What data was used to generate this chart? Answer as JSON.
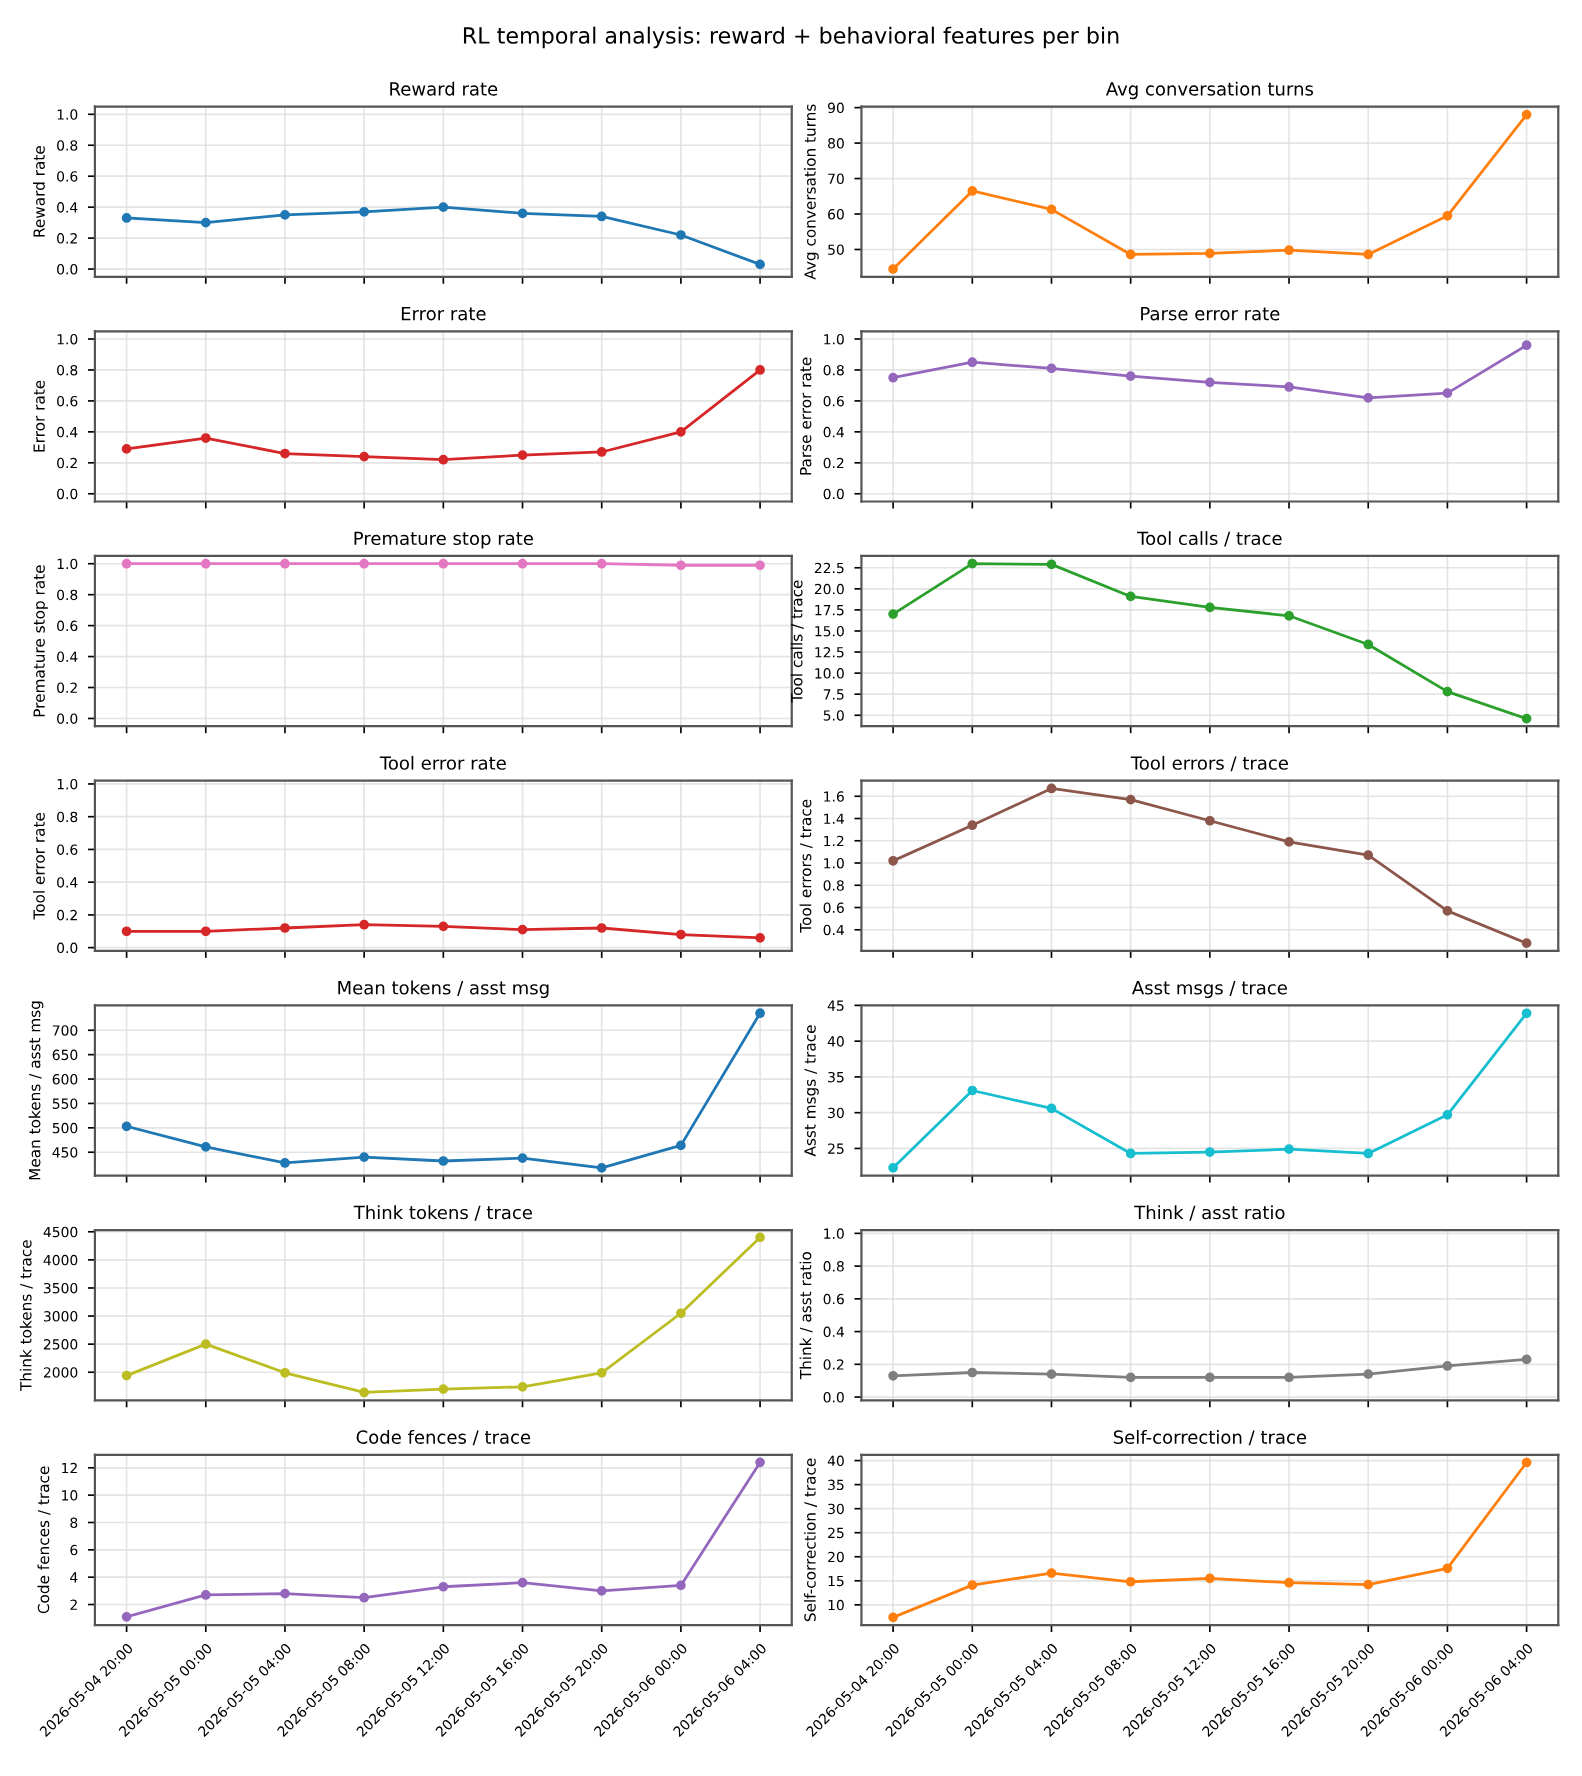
{
  "chart_data": [
    {
      "type": "line",
      "title": "Reward rate",
      "ylabel": "Reward rate",
      "annotations": [
        "RL temporal analysis: reward + behavioral features per bin"
      ],
      "categories": [
        "2026-05-04 20:00",
        "2026-05-05 00:00",
        "2026-05-05 04:00",
        "2026-05-05 08:00",
        "2026-05-05 12:00",
        "2026-05-05 16:00",
        "2026-05-05 20:00",
        "2026-05-06 00:00",
        "2026-05-06 04:00"
      ],
      "series": [
        {
          "color": "#1f77b4",
          "values": [
            0.33,
            0.3,
            0.35,
            0.37,
            0.4,
            0.36,
            0.34,
            0.22,
            0.03
          ]
        }
      ],
      "ylim": [
        -0.05,
        1.05
      ],
      "yticks": [
        {
          "value": 0,
          "label": "0.0"
        },
        {
          "value": 0.2,
          "label": "0.2"
        },
        {
          "value": 0.4,
          "label": "0.4"
        },
        {
          "value": 0.6,
          "label": "0.6"
        },
        {
          "value": 0.8,
          "label": "0.8"
        },
        {
          "value": 1,
          "label": "1.0"
        }
      ],
      "tick_labels": "y",
      "grid": true,
      "marker": "circle",
      "line_style": "solid"
    },
    {
      "type": "line",
      "title": "Avg conversation turns",
      "ylabel": "Avg conversation turns",
      "categories": [
        "2026-05-04 20:00",
        "2026-05-05 00:00",
        "2026-05-05 04:00",
        "2026-05-05 08:00",
        "2026-05-05 12:00",
        "2026-05-05 16:00",
        "2026-05-05 20:00",
        "2026-05-06 00:00",
        "2026-05-06 04:00"
      ],
      "series": [
        {
          "color": "#ff7f0e",
          "values": [
            44.5,
            66.5,
            61.3,
            48.6,
            48.9,
            49.8,
            48.6,
            59.5,
            88
          ]
        }
      ],
      "ylim": [
        42.3,
        90.3
      ],
      "yticks": [
        50,
        60,
        70,
        80,
        90
      ],
      "tick_labels": "y",
      "grid": true,
      "marker": "circle",
      "line_style": "solid"
    },
    {
      "type": "line",
      "title": "Error rate",
      "ylabel": "Error rate",
      "categories": [
        "2026-05-04 20:00",
        "2026-05-05 00:00",
        "2026-05-05 04:00",
        "2026-05-05 08:00",
        "2026-05-05 12:00",
        "2026-05-05 16:00",
        "2026-05-05 20:00",
        "2026-05-06 00:00",
        "2026-05-06 04:00"
      ],
      "series": [
        {
          "color": "#d62728",
          "values": [
            0.29,
            0.36,
            0.26,
            0.24,
            0.22,
            0.25,
            0.27,
            0.4,
            0.8
          ]
        }
      ],
      "ylim": [
        -0.05,
        1.05
      ],
      "yticks": [
        {
          "value": 0,
          "label": "0.0"
        },
        {
          "value": 0.2,
          "label": "0.2"
        },
        {
          "value": 0.4,
          "label": "0.4"
        },
        {
          "value": 0.6,
          "label": "0.6"
        },
        {
          "value": 0.8,
          "label": "0.8"
        },
        {
          "value": 1,
          "label": "1.0"
        }
      ],
      "tick_labels": "y",
      "grid": true,
      "marker": "circle",
      "line_style": "solid"
    },
    {
      "type": "line",
      "title": "Parse error rate",
      "ylabel": "Parse error rate",
      "categories": [
        "2026-05-04 20:00",
        "2026-05-05 00:00",
        "2026-05-05 04:00",
        "2026-05-05 08:00",
        "2026-05-05 12:00",
        "2026-05-05 16:00",
        "2026-05-05 20:00",
        "2026-05-06 00:00",
        "2026-05-06 04:00"
      ],
      "series": [
        {
          "color": "#9467bd",
          "values": [
            0.75,
            0.85,
            0.81,
            0.76,
            0.72,
            0.69,
            0.62,
            0.65,
            0.96
          ]
        }
      ],
      "ylim": [
        -0.05,
        1.05
      ],
      "yticks": [
        {
          "value": 0,
          "label": "0.0"
        },
        {
          "value": 0.2,
          "label": "0.2"
        },
        {
          "value": 0.4,
          "label": "0.4"
        },
        {
          "value": 0.6,
          "label": "0.6"
        },
        {
          "value": 0.8,
          "label": "0.8"
        },
        {
          "value": 1,
          "label": "1.0"
        }
      ],
      "tick_labels": "y",
      "grid": true,
      "marker": "circle",
      "line_style": "solid"
    },
    {
      "type": "line",
      "title": "Premature stop rate",
      "ylabel": "Premature stop rate",
      "categories": [
        "2026-05-04 20:00",
        "2026-05-05 00:00",
        "2026-05-05 04:00",
        "2026-05-05 08:00",
        "2026-05-05 12:00",
        "2026-05-05 16:00",
        "2026-05-05 20:00",
        "2026-05-06 00:00",
        "2026-05-06 04:00"
      ],
      "series": [
        {
          "color": "#e377c2",
          "values": [
            1.0,
            1.0,
            1.0,
            1.0,
            1.0,
            1.0,
            1.0,
            0.99,
            0.99
          ]
        }
      ],
      "ylim": [
        -0.05,
        1.05
      ],
      "yticks": [
        {
          "value": 0,
          "label": "0.0"
        },
        {
          "value": 0.2,
          "label": "0.2"
        },
        {
          "value": 0.4,
          "label": "0.4"
        },
        {
          "value": 0.6,
          "label": "0.6"
        },
        {
          "value": 0.8,
          "label": "0.8"
        },
        {
          "value": 1,
          "label": "1.0"
        }
      ],
      "tick_labels": "y",
      "grid": true,
      "marker": "circle",
      "line_style": "solid"
    },
    {
      "type": "line",
      "title": "Tool calls / trace",
      "ylabel": "Tool calls / trace",
      "categories": [
        "2026-05-04 20:00",
        "2026-05-05 00:00",
        "2026-05-05 04:00",
        "2026-05-05 08:00",
        "2026-05-05 12:00",
        "2026-05-05 16:00",
        "2026-05-05 20:00",
        "2026-05-06 00:00",
        "2026-05-06 04:00"
      ],
      "series": [
        {
          "color": "#2ca02c",
          "values": [
            17.0,
            23.0,
            22.9,
            19.1,
            17.8,
            16.8,
            13.4,
            7.8,
            4.6
          ]
        }
      ],
      "ylim": [
        3.7,
        23.9
      ],
      "yticks": [
        {
          "value": 5,
          "label": "5.0"
        },
        {
          "value": 7.5,
          "label": "7.5"
        },
        {
          "value": 10,
          "label": "10.0"
        },
        {
          "value": 12.5,
          "label": "12.5"
        },
        {
          "value": 15,
          "label": "15.0"
        },
        {
          "value": 17.5,
          "label": "17.5"
        },
        {
          "value": 20,
          "label": "20.0"
        },
        {
          "value": 22.5,
          "label": "22.5"
        }
      ],
      "tick_labels": "y",
      "grid": true,
      "marker": "circle",
      "line_style": "solid"
    },
    {
      "type": "line",
      "title": "Tool error rate",
      "ylabel": "Tool error rate",
      "categories": [
        "2026-05-04 20:00",
        "2026-05-05 00:00",
        "2026-05-05 04:00",
        "2026-05-05 08:00",
        "2026-05-05 12:00",
        "2026-05-05 16:00",
        "2026-05-05 20:00",
        "2026-05-06 00:00",
        "2026-05-06 04:00"
      ],
      "series": [
        {
          "color": "#d62728",
          "values": [
            0.1,
            0.1,
            0.12,
            0.14,
            0.13,
            0.11,
            0.12,
            0.08,
            0.06
          ]
        }
      ],
      "ylim": [
        -0.02,
        1.02
      ],
      "yticks": [
        {
          "value": 0,
          "label": "0.0"
        },
        {
          "value": 0.2,
          "label": "0.2"
        },
        {
          "value": 0.4,
          "label": "0.4"
        },
        {
          "value": 0.6,
          "label": "0.6"
        },
        {
          "value": 0.8,
          "label": "0.8"
        },
        {
          "value": 1,
          "label": "1.0"
        }
      ],
      "tick_labels": "y",
      "grid": true,
      "marker": "circle",
      "line_style": "solid"
    },
    {
      "type": "line",
      "title": "Tool errors / trace",
      "ylabel": "Tool errors / trace",
      "categories": [
        "2026-05-04 20:00",
        "2026-05-05 00:00",
        "2026-05-05 04:00",
        "2026-05-05 08:00",
        "2026-05-05 12:00",
        "2026-05-05 16:00",
        "2026-05-05 20:00",
        "2026-05-06 00:00",
        "2026-05-06 04:00"
      ],
      "series": [
        {
          "color": "#8c564b",
          "values": [
            1.02,
            1.34,
            1.67,
            1.57,
            1.38,
            1.19,
            1.07,
            0.57,
            0.28
          ]
        }
      ],
      "ylim": [
        0.21,
        1.74
      ],
      "yticks": [
        {
          "value": 0.4,
          "label": "0.4"
        },
        {
          "value": 0.6,
          "label": "0.6"
        },
        {
          "value": 0.8,
          "label": "0.8"
        },
        {
          "value": 1.0,
          "label": "1.0"
        },
        {
          "value": 1.2,
          "label": "1.2"
        },
        {
          "value": 1.4,
          "label": "1.4"
        },
        {
          "value": 1.6,
          "label": "1.6"
        }
      ],
      "tick_labels": "y",
      "grid": true,
      "marker": "circle",
      "line_style": "solid"
    },
    {
      "type": "line",
      "title": "Mean tokens / asst msg",
      "ylabel": "Mean tokens / asst msg",
      "categories": [
        "2026-05-04 20:00",
        "2026-05-05 00:00",
        "2026-05-05 04:00",
        "2026-05-05 08:00",
        "2026-05-05 12:00",
        "2026-05-05 16:00",
        "2026-05-05 20:00",
        "2026-05-06 00:00",
        "2026-05-06 04:00"
      ],
      "series": [
        {
          "color": "#1f77b4",
          "values": [
            503,
            461,
            428,
            440,
            432,
            438,
            418,
            464,
            735
          ]
        }
      ],
      "ylim": [
        402,
        751
      ],
      "yticks": [
        450,
        500,
        550,
        600,
        650,
        700
      ],
      "tick_labels": "y",
      "grid": true,
      "marker": "circle",
      "line_style": "solid"
    },
    {
      "type": "line",
      "title": "Asst msgs / trace",
      "ylabel": "Asst msgs / trace",
      "categories": [
        "2026-05-04 20:00",
        "2026-05-05 00:00",
        "2026-05-05 04:00",
        "2026-05-05 08:00",
        "2026-05-05 12:00",
        "2026-05-05 16:00",
        "2026-05-05 20:00",
        "2026-05-06 00:00",
        "2026-05-06 04:00"
      ],
      "series": [
        {
          "color": "#17becf",
          "values": [
            22.3,
            33.1,
            30.6,
            24.3,
            24.5,
            24.9,
            24.3,
            29.7,
            43.9
          ]
        }
      ],
      "ylim": [
        21.2,
        45.0
      ],
      "yticks": [
        25,
        30,
        35,
        40,
        45
      ],
      "tick_labels": "y",
      "grid": true,
      "marker": "circle",
      "line_style": "solid"
    },
    {
      "type": "line",
      "title": "Think tokens / trace",
      "ylabel": "Think tokens / trace",
      "categories": [
        "2026-05-04 20:00",
        "2026-05-05 00:00",
        "2026-05-05 04:00",
        "2026-05-05 08:00",
        "2026-05-05 12:00",
        "2026-05-05 16:00",
        "2026-05-05 20:00",
        "2026-05-06 00:00",
        "2026-05-06 04:00"
      ],
      "series": [
        {
          "color": "#bcbd22",
          "values": [
            1940,
            2500,
            1990,
            1640,
            1700,
            1740,
            1990,
            3050,
            4400
          ]
        }
      ],
      "ylim": [
        1500,
        4530
      ],
      "yticks": [
        2000,
        2500,
        3000,
        3500,
        4000,
        4500
      ],
      "tick_labels": "y",
      "grid": true,
      "marker": "circle",
      "line_style": "solid"
    },
    {
      "type": "line",
      "title": "Think / asst ratio",
      "ylabel": "Think / asst ratio",
      "categories": [
        "2026-05-04 20:00",
        "2026-05-05 00:00",
        "2026-05-05 04:00",
        "2026-05-05 08:00",
        "2026-05-05 12:00",
        "2026-05-05 16:00",
        "2026-05-05 20:00",
        "2026-05-06 00:00",
        "2026-05-06 04:00"
      ],
      "series": [
        {
          "color": "#7f7f7f",
          "values": [
            0.13,
            0.15,
            0.14,
            0.12,
            0.12,
            0.12,
            0.14,
            0.19,
            0.23
          ]
        }
      ],
      "ylim": [
        -0.02,
        1.02
      ],
      "yticks": [
        {
          "value": 0,
          "label": "0.0"
        },
        {
          "value": 0.2,
          "label": "0.2"
        },
        {
          "value": 0.4,
          "label": "0.4"
        },
        {
          "value": 0.6,
          "label": "0.6"
        },
        {
          "value": 0.8,
          "label": "0.8"
        },
        {
          "value": 1,
          "label": "1.0"
        }
      ],
      "tick_labels": "y",
      "grid": true,
      "marker": "circle",
      "line_style": "solid"
    },
    {
      "type": "line",
      "title": "Code fences / trace",
      "ylabel": "Code fences / trace",
      "categories": [
        "2026-05-04 20:00",
        "2026-05-05 00:00",
        "2026-05-05 04:00",
        "2026-05-05 08:00",
        "2026-05-05 12:00",
        "2026-05-05 16:00",
        "2026-05-05 20:00",
        "2026-05-06 00:00",
        "2026-05-06 04:00"
      ],
      "series": [
        {
          "color": "#9467bd",
          "values": [
            1.1,
            2.7,
            2.8,
            2.5,
            3.3,
            3.6,
            3.0,
            3.4,
            12.4
          ]
        }
      ],
      "ylim": [
        0.5,
        12.95
      ],
      "yticks": [
        2,
        4,
        6,
        8,
        10,
        12
      ],
      "grid": true,
      "marker": "circle",
      "line_style": "solid"
    },
    {
      "type": "line",
      "title": "Self-correction / trace",
      "ylabel": "Self-correction / trace",
      "categories": [
        "2026-05-04 20:00",
        "2026-05-05 00:00",
        "2026-05-05 04:00",
        "2026-05-05 08:00",
        "2026-05-05 12:00",
        "2026-05-05 16:00",
        "2026-05-05 20:00",
        "2026-05-06 00:00",
        "2026-05-06 04:00"
      ],
      "series": [
        {
          "color": "#ff7f0e",
          "values": [
            7.4,
            14.1,
            16.6,
            14.8,
            15.5,
            14.6,
            14.2,
            17.6,
            39.6
          ]
        }
      ],
      "ylim": [
        5.8,
        41.2
      ],
      "yticks": [
        10,
        15,
        20,
        25,
        30,
        35,
        40
      ],
      "grid": true,
      "marker": "circle",
      "line_style": "solid"
    }
  ]
}
